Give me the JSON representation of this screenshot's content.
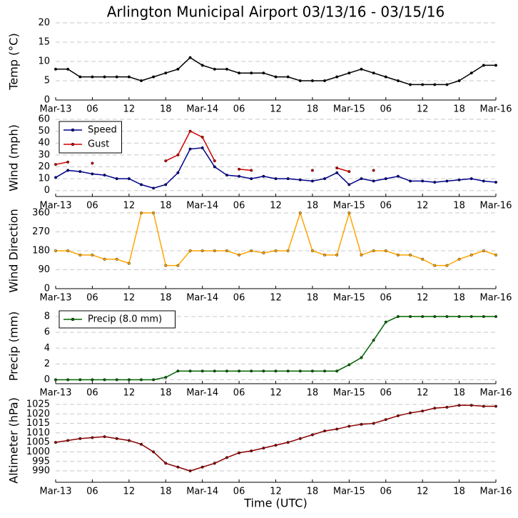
{
  "chart_data": [
    {
      "type": "line",
      "title": "Arlington Municipal Airport 03/13/16 - 03/15/16",
      "ylabel": "Temp (°C)",
      "x": [
        0,
        2,
        4,
        6,
        8,
        10,
        12,
        14,
        16,
        18,
        20,
        22,
        24,
        26,
        28,
        30,
        32,
        34,
        36,
        38,
        40,
        42,
        44,
        46,
        48,
        50,
        52,
        54,
        56,
        58,
        60,
        62,
        64,
        66,
        68,
        70,
        72
      ],
      "series": [
        {
          "name": "Temp",
          "color": "#000000",
          "values": [
            8,
            8,
            6,
            6,
            6,
            6,
            6,
            5,
            6,
            7,
            8,
            11,
            9,
            8,
            8,
            7,
            7,
            7,
            6,
            6,
            5,
            5,
            5,
            6,
            7,
            8,
            7,
            6,
            5,
            4,
            4,
            4,
            4,
            5,
            7,
            9,
            9
          ]
        }
      ],
      "xlim": [
        0,
        72
      ],
      "xticks": [
        {
          "value": 0,
          "label": "Mar-13"
        },
        {
          "value": 6,
          "label": "06"
        },
        12,
        18,
        {
          "value": 24,
          "label": "Mar-14"
        },
        {
          "value": 30,
          "label": "06"
        },
        {
          "value": 36,
          "label": "12"
        },
        {
          "value": 42,
          "label": "18"
        },
        {
          "value": 48,
          "label": "Mar-15"
        },
        {
          "value": 54,
          "label": "06"
        },
        {
          "value": 60,
          "label": "12"
        },
        {
          "value": 66,
          "label": "18"
        },
        {
          "value": 72,
          "label": "Mar-16"
        }
      ],
      "ylim": [
        0,
        20
      ],
      "yticks": [
        0,
        5,
        10,
        15,
        20
      ],
      "grid": true
    },
    {
      "type": "line",
      "ylabel": "Wind (mph)",
      "legend": "upper left",
      "x": [
        0,
        2,
        4,
        6,
        8,
        10,
        12,
        14,
        16,
        18,
        20,
        22,
        24,
        26,
        28,
        30,
        32,
        34,
        36,
        38,
        40,
        42,
        44,
        46,
        48,
        50,
        52,
        54,
        56,
        58,
        60,
        62,
        64,
        66,
        68,
        70,
        72
      ],
      "series": [
        {
          "name": "Speed",
          "color": "#00008b",
          "values": [
            11,
            17,
            16,
            14,
            13,
            10,
            10,
            5,
            2,
            5,
            15,
            35,
            36,
            20,
            13,
            12,
            10,
            12,
            10,
            10,
            9,
            8,
            10,
            15,
            5,
            10,
            8,
            10,
            12,
            8,
            8,
            7,
            8,
            9,
            10,
            8,
            7
          ]
        },
        {
          "name": "Gust",
          "color": "#cc0000",
          "values": [
            22,
            24,
            null,
            23,
            null,
            null,
            null,
            null,
            null,
            25,
            30,
            50,
            45,
            25,
            null,
            18,
            17,
            null,
            null,
            null,
            null,
            17,
            null,
            19,
            16,
            null,
            17,
            null,
            null,
            null,
            null,
            null,
            null,
            null,
            null,
            null,
            null
          ]
        }
      ],
      "xlim": [
        0,
        72
      ],
      "xticks": [
        {
          "value": 0,
          "label": "Mar-13"
        },
        {
          "value": 6,
          "label": "06"
        },
        12,
        18,
        {
          "value": 24,
          "label": "Mar-14"
        },
        {
          "value": 30,
          "label": "06"
        },
        {
          "value": 36,
          "label": "12"
        },
        {
          "value": 42,
          "label": "18"
        },
        {
          "value": 48,
          "label": "Mar-15"
        },
        {
          "value": 54,
          "label": "06"
        },
        {
          "value": 60,
          "label": "12"
        },
        {
          "value": 66,
          "label": "18"
        },
        {
          "value": 72,
          "label": "Mar-16"
        }
      ],
      "ylim": [
        -5,
        60
      ],
      "yticks": [
        0,
        10,
        20,
        30,
        40,
        50,
        60
      ],
      "grid": true
    },
    {
      "type": "line",
      "ylabel": "Wind Direction",
      "x": [
        0,
        2,
        4,
        6,
        8,
        10,
        12,
        14,
        16,
        18,
        20,
        22,
        24,
        26,
        28,
        30,
        32,
        34,
        36,
        38,
        40,
        42,
        44,
        46,
        48,
        50,
        52,
        54,
        56,
        58,
        60,
        62,
        64,
        66,
        68,
        70,
        72
      ],
      "series": [
        {
          "name": "Direction",
          "color": "#ffa500",
          "values": [
            180,
            180,
            160,
            160,
            140,
            140,
            120,
            360,
            360,
            110,
            110,
            180,
            180,
            180,
            180,
            160,
            180,
            170,
            180,
            180,
            360,
            180,
            160,
            160,
            360,
            160,
            180,
            180,
            160,
            160,
            140,
            110,
            110,
            140,
            160,
            180,
            160
          ]
        }
      ],
      "xlim": [
        0,
        72
      ],
      "xticks": [
        {
          "value": 0,
          "label": "Mar-13"
        },
        {
          "value": 6,
          "label": "06"
        },
        12,
        18,
        {
          "value": 24,
          "label": "Mar-14"
        },
        {
          "value": 30,
          "label": "06"
        },
        {
          "value": 36,
          "label": "12"
        },
        {
          "value": 42,
          "label": "18"
        },
        {
          "value": 48,
          "label": "Mar-15"
        },
        {
          "value": 54,
          "label": "06"
        },
        {
          "value": 60,
          "label": "12"
        },
        {
          "value": 66,
          "label": "18"
        },
        {
          "value": 72,
          "label": "Mar-16"
        }
      ],
      "ylim": [
        0,
        360
      ],
      "yticks": [
        0,
        90,
        180,
        270,
        360
      ],
      "grid": true
    },
    {
      "type": "line",
      "ylabel": "Precip (mm)",
      "legend": "upper left",
      "x": [
        0,
        2,
        4,
        6,
        8,
        10,
        12,
        14,
        16,
        18,
        20,
        22,
        24,
        26,
        28,
        30,
        32,
        34,
        36,
        38,
        40,
        42,
        44,
        46,
        48,
        50,
        52,
        54,
        56,
        58,
        60,
        62,
        64,
        66,
        68,
        70,
        72
      ],
      "series": [
        {
          "name": "Precip (8.0 mm)",
          "color": "#006400",
          "values": [
            0,
            0,
            0,
            0,
            0,
            0,
            0,
            0,
            0,
            0.3,
            1.1,
            1.1,
            1.1,
            1.1,
            1.1,
            1.1,
            1.1,
            1.1,
            1.1,
            1.1,
            1.1,
            1.1,
            1.1,
            1.1,
            1.9,
            2.8,
            5,
            7.3,
            8,
            8,
            8,
            8,
            8,
            8,
            8,
            8,
            8
          ]
        }
      ],
      "xlim": [
        0,
        72
      ],
      "xticks": [
        {
          "value": 0,
          "label": "Mar-13"
        },
        {
          "value": 6,
          "label": "06"
        },
        12,
        18,
        {
          "value": 24,
          "label": "Mar-14"
        },
        {
          "value": 30,
          "label": "06"
        },
        {
          "value": 36,
          "label": "12"
        },
        {
          "value": 42,
          "label": "18"
        },
        {
          "value": 48,
          "label": "Mar-15"
        },
        {
          "value": 54,
          "label": "06"
        },
        {
          "value": 60,
          "label": "12"
        },
        {
          "value": 66,
          "label": "18"
        },
        {
          "value": 72,
          "label": "Mar-16"
        }
      ],
      "ylim": [
        -0.5,
        9
      ],
      "yticks": [
        0,
        2,
        4,
        6,
        8
      ],
      "grid": true
    },
    {
      "type": "line",
      "ylabel": "Altimeter (hPa)",
      "xlabel": "Time (UTC)",
      "x": [
        0,
        2,
        4,
        6,
        8,
        10,
        12,
        14,
        16,
        18,
        20,
        22,
        24,
        26,
        28,
        30,
        32,
        34,
        36,
        38,
        40,
        42,
        44,
        46,
        48,
        50,
        52,
        54,
        56,
        58,
        60,
        62,
        64,
        66,
        68,
        70,
        72
      ],
      "series": [
        {
          "name": "Altimeter",
          "color": "#8b0000",
          "values": [
            1005,
            1006,
            1007,
            1007.5,
            1008,
            1007,
            1006,
            1004,
            1000,
            994,
            992,
            990,
            992,
            994,
            997,
            999.5,
            1000.5,
            1002,
            1003.5,
            1005,
            1007,
            1009,
            1011,
            1012,
            1013.5,
            1014.5,
            1015,
            1017,
            1019,
            1020.5,
            1021.5,
            1023,
            1023.5,
            1024.5,
            1024.5,
            1024,
            1024
          ]
        }
      ],
      "xlim": [
        0,
        72
      ],
      "xticks": [
        {
          "value": 0,
          "label": "Mar-13"
        },
        {
          "value": 6,
          "label": "06"
        },
        12,
        18,
        {
          "value": 24,
          "label": "Mar-14"
        },
        {
          "value": 30,
          "label": "06"
        },
        {
          "value": 36,
          "label": "12"
        },
        {
          "value": 42,
          "label": "18"
        },
        {
          "value": 48,
          "label": "Mar-15"
        },
        {
          "value": 54,
          "label": "06"
        },
        {
          "value": 60,
          "label": "12"
        },
        {
          "value": 66,
          "label": "18"
        },
        {
          "value": 72,
          "label": "Mar-16"
        }
      ],
      "ylim": [
        984,
        1028
      ],
      "yticks": [
        990,
        995,
        1000,
        1005,
        1010,
        1015,
        1020,
        1025
      ],
      "grid": true
    }
  ]
}
